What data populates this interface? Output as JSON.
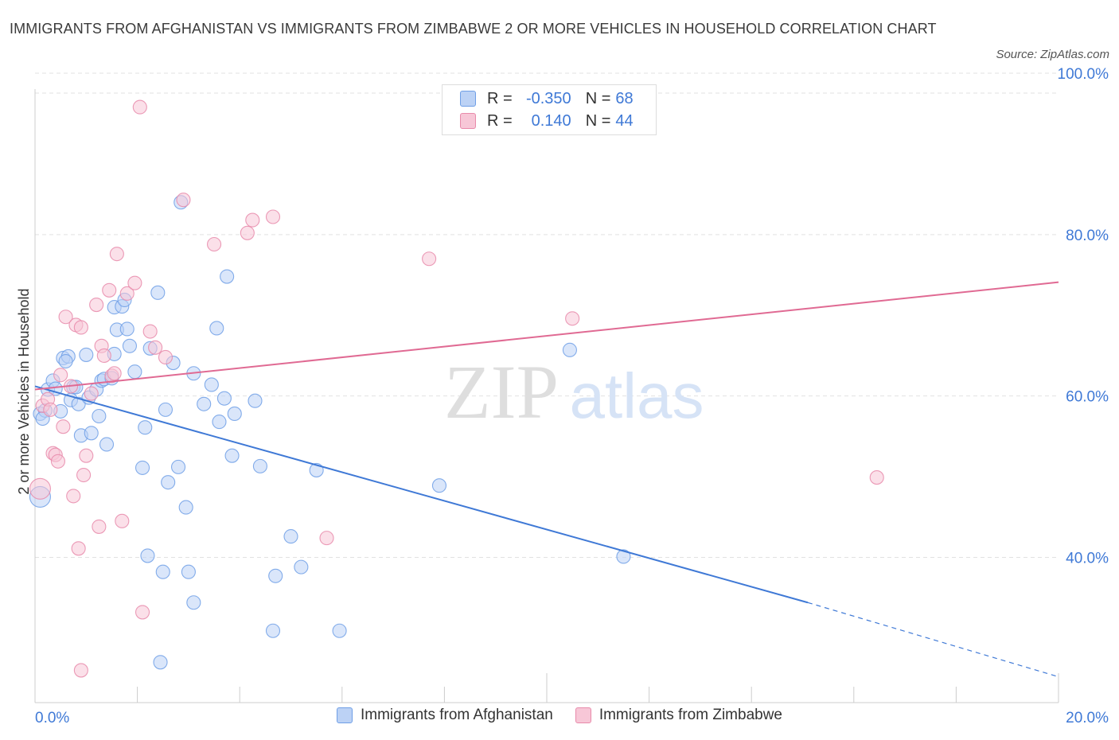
{
  "title": "IMMIGRANTS FROM AFGHANISTAN VS IMMIGRANTS FROM ZIMBABWE 2 OR MORE VEHICLES IN HOUSEHOLD CORRELATION CHART",
  "source": "Source: ZipAtlas.com",
  "watermark": {
    "zip": "ZIP",
    "atlas": "atlas"
  },
  "legend": {
    "r_label": "R =",
    "n_label": "N =",
    "series": [
      {
        "r": "-0.350",
        "n": "68"
      },
      {
        "r": "0.140",
        "n": "44"
      }
    ]
  },
  "colors": {
    "afghanistan_fill": "#bcd2f5",
    "afghanistan_stroke": "#6f9fe6",
    "afghanistan_line": "#3f79d6",
    "zimbabwe_fill": "#f7c7d7",
    "zimbabwe_stroke": "#e88aaa",
    "zimbabwe_line": "#e06a93",
    "tick_text": "#3f79d6",
    "grid": "#e2e2e2"
  },
  "chart_data": {
    "type": "scatter",
    "title": "IMMIGRANTS FROM AFGHANISTAN VS IMMIGRANTS FROM ZIMBABWE 2 OR MORE VEHICLES IN HOUSEHOLD CORRELATION CHART",
    "xlabel": "",
    "ylabel": "2 or more Vehicles in Household",
    "xlim": [
      0,
      20
    ],
    "ylim": [
      22,
      100
    ],
    "x_tick_labels": [
      "0.0%",
      "20.0%"
    ],
    "y_ticks": [
      40,
      60,
      80,
      100
    ],
    "y_tick_labels": [
      "40.0%",
      "60.0%",
      "80.0%",
      "100.0%"
    ],
    "grid": true,
    "legend_position": "bottom",
    "series": [
      {
        "name": "Immigrants from Afghanistan",
        "points": [
          [
            0.1,
            47.5
          ],
          [
            0.1,
            57.8
          ],
          [
            0.2,
            58.2
          ],
          [
            0.25,
            60.8
          ],
          [
            0.35,
            61.9
          ],
          [
            0.4,
            60.9
          ],
          [
            0.5,
            58.1
          ],
          [
            0.55,
            64.7
          ],
          [
            0.65,
            64.9
          ],
          [
            0.6,
            64.3
          ],
          [
            0.75,
            61.1
          ],
          [
            0.8,
            61.1
          ],
          [
            0.7,
            59.5
          ],
          [
            0.85,
            59.0
          ],
          [
            0.9,
            55.1
          ],
          [
            1.0,
            65.1
          ],
          [
            1.05,
            59.8
          ],
          [
            1.1,
            55.4
          ],
          [
            1.2,
            60.8
          ],
          [
            1.25,
            57.5
          ],
          [
            1.3,
            61.9
          ],
          [
            1.35,
            62.1
          ],
          [
            1.4,
            54.0
          ],
          [
            1.5,
            62.2
          ],
          [
            1.55,
            71.0
          ],
          [
            1.55,
            65.2
          ],
          [
            1.6,
            68.2
          ],
          [
            1.7,
            71.1
          ],
          [
            1.75,
            71.9
          ],
          [
            1.8,
            68.3
          ],
          [
            1.85,
            66.2
          ],
          [
            1.95,
            63.0
          ],
          [
            2.1,
            51.1
          ],
          [
            2.15,
            56.1
          ],
          [
            2.2,
            40.2
          ],
          [
            2.25,
            65.9
          ],
          [
            2.4,
            72.8
          ],
          [
            2.45,
            27.0
          ],
          [
            2.5,
            38.2
          ],
          [
            2.55,
            58.3
          ],
          [
            2.6,
            49.3
          ],
          [
            2.7,
            64.1
          ],
          [
            2.8,
            51.2
          ],
          [
            2.85,
            84.0
          ],
          [
            2.95,
            46.2
          ],
          [
            3.0,
            38.2
          ],
          [
            3.1,
            34.4
          ],
          [
            3.1,
            62.8
          ],
          [
            3.3,
            59.0
          ],
          [
            3.45,
            61.4
          ],
          [
            3.55,
            68.4
          ],
          [
            3.6,
            56.8
          ],
          [
            3.7,
            59.7
          ],
          [
            3.75,
            74.8
          ],
          [
            3.85,
            52.6
          ],
          [
            3.9,
            57.8
          ],
          [
            4.3,
            59.4
          ],
          [
            4.4,
            51.3
          ],
          [
            4.65,
            30.9
          ],
          [
            4.7,
            37.7
          ],
          [
            5.0,
            42.6
          ],
          [
            5.2,
            38.8
          ],
          [
            5.5,
            50.8
          ],
          [
            5.95,
            30.9
          ],
          [
            7.9,
            48.9
          ],
          [
            10.45,
            65.7
          ],
          [
            11.5,
            40.1
          ],
          [
            0.15,
            57.2
          ]
        ]
      },
      {
        "name": "Immigrants from Zimbabwe",
        "points": [
          [
            0.1,
            48.5
          ],
          [
            0.15,
            58.8
          ],
          [
            0.25,
            59.6
          ],
          [
            0.3,
            58.3
          ],
          [
            0.35,
            52.9
          ],
          [
            0.4,
            52.7
          ],
          [
            0.45,
            51.9
          ],
          [
            0.5,
            62.6
          ],
          [
            0.55,
            56.2
          ],
          [
            0.6,
            69.8
          ],
          [
            0.7,
            61.2
          ],
          [
            0.75,
            47.6
          ],
          [
            0.8,
            68.8
          ],
          [
            0.85,
            41.1
          ],
          [
            0.9,
            26.0
          ],
          [
            0.9,
            68.5
          ],
          [
            0.95,
            50.2
          ],
          [
            1.0,
            52.6
          ],
          [
            1.1,
            60.3
          ],
          [
            1.2,
            71.3
          ],
          [
            1.25,
            43.8
          ],
          [
            1.3,
            66.2
          ],
          [
            1.35,
            65.0
          ],
          [
            1.45,
            73.1
          ],
          [
            1.5,
            62.5
          ],
          [
            1.55,
            62.8
          ],
          [
            1.6,
            77.6
          ],
          [
            1.7,
            44.5
          ],
          [
            1.8,
            72.7
          ],
          [
            1.95,
            74.0
          ],
          [
            2.05,
            95.8
          ],
          [
            2.1,
            33.2
          ],
          [
            2.25,
            68.0
          ],
          [
            2.35,
            66.0
          ],
          [
            2.55,
            64.8
          ],
          [
            2.9,
            84.3
          ],
          [
            3.5,
            78.8
          ],
          [
            4.15,
            80.2
          ],
          [
            4.25,
            81.8
          ],
          [
            4.65,
            82.2
          ],
          [
            5.7,
            42.4
          ],
          [
            7.7,
            77.0
          ],
          [
            10.5,
            69.6
          ],
          [
            16.45,
            49.9
          ]
        ]
      }
    ],
    "trendlines": [
      {
        "series": "Immigrants from Afghanistan",
        "x": [
          0,
          15.1
        ],
        "y": [
          61.2,
          34.4
        ],
        "dashed_to": [
          20,
          25.2
        ]
      },
      {
        "series": "Immigrants from Zimbabwe",
        "x": [
          0,
          20
        ],
        "y": [
          60.8,
          74.1
        ]
      }
    ]
  },
  "bottom_legend": [
    "Immigrants from Afghanistan",
    "Immigrants from Zimbabwe"
  ]
}
